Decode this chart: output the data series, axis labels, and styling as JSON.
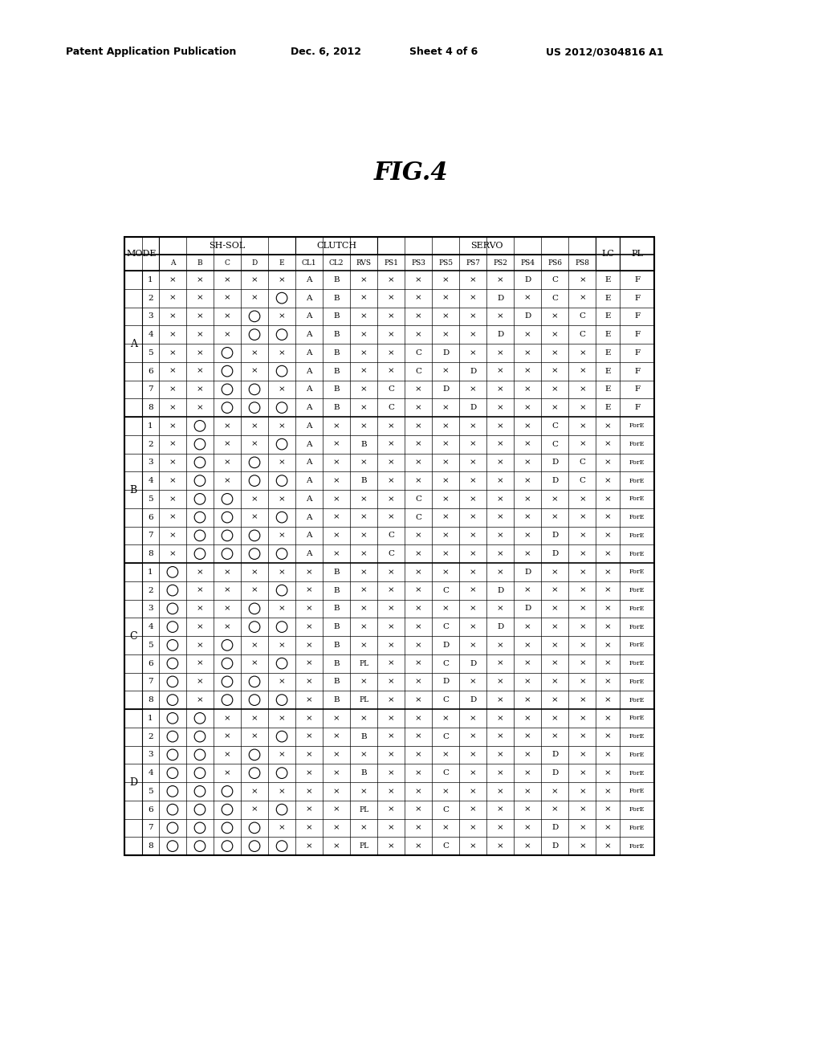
{
  "title": "FIG.4",
  "header_line1": "Patent Application Publication",
  "header_date": "Dec. 6, 2012",
  "header_sheet": "Sheet 4 of 6",
  "header_patent": "US 2012/0304816 A1",
  "rows": [
    [
      "A",
      1,
      "x",
      "x",
      "x",
      "x",
      "x",
      "A",
      "B",
      "x",
      "x",
      "x",
      "x",
      "x",
      "x",
      "D",
      "C",
      "x",
      "E",
      "F"
    ],
    [
      "A",
      2,
      "x",
      "x",
      "x",
      "x",
      "O",
      "A",
      "B",
      "x",
      "x",
      "x",
      "x",
      "x",
      "D",
      "x",
      "C",
      "x",
      "E",
      "F"
    ],
    [
      "A",
      3,
      "x",
      "x",
      "x",
      "O",
      "x",
      "A",
      "B",
      "x",
      "x",
      "x",
      "x",
      "x",
      "x",
      "D",
      "x",
      "C",
      "E",
      "F"
    ],
    [
      "A",
      4,
      "x",
      "x",
      "x",
      "O",
      "O",
      "A",
      "B",
      "x",
      "x",
      "x",
      "x",
      "x",
      "D",
      "x",
      "x",
      "C",
      "E",
      "F"
    ],
    [
      "A",
      5,
      "x",
      "x",
      "O",
      "x",
      "x",
      "A",
      "B",
      "x",
      "x",
      "C",
      "D",
      "x",
      "x",
      "x",
      "x",
      "x",
      "E",
      "F"
    ],
    [
      "A",
      6,
      "x",
      "x",
      "O",
      "x",
      "O",
      "A",
      "B",
      "x",
      "x",
      "C",
      "x",
      "D",
      "x",
      "x",
      "x",
      "x",
      "E",
      "F"
    ],
    [
      "A",
      7,
      "x",
      "x",
      "O",
      "O",
      "x",
      "A",
      "B",
      "x",
      "C",
      "x",
      "D",
      "x",
      "x",
      "x",
      "x",
      "x",
      "E",
      "F"
    ],
    [
      "A",
      8,
      "x",
      "x",
      "O",
      "O",
      "O",
      "A",
      "B",
      "x",
      "C",
      "x",
      "x",
      "D",
      "x",
      "x",
      "x",
      "x",
      "E",
      "F"
    ],
    [
      "B",
      1,
      "x",
      "O",
      "x",
      "x",
      "x",
      "A",
      "x",
      "x",
      "x",
      "x",
      "x",
      "x",
      "x",
      "x",
      "C",
      "x",
      "x",
      "ForE"
    ],
    [
      "B",
      2,
      "x",
      "O",
      "x",
      "x",
      "O",
      "A",
      "x",
      "B",
      "x",
      "x",
      "x",
      "x",
      "x",
      "x",
      "C",
      "x",
      "x",
      "ForE"
    ],
    [
      "B",
      3,
      "x",
      "O",
      "x",
      "O",
      "x",
      "A",
      "x",
      "x",
      "x",
      "x",
      "x",
      "x",
      "x",
      "x",
      "D",
      "C",
      "x",
      "ForE"
    ],
    [
      "B",
      4,
      "x",
      "O",
      "x",
      "O",
      "O",
      "A",
      "x",
      "B",
      "x",
      "x",
      "x",
      "x",
      "x",
      "x",
      "D",
      "C",
      "x",
      "ForE"
    ],
    [
      "B",
      5,
      "x",
      "O",
      "O",
      "x",
      "x",
      "A",
      "x",
      "x",
      "x",
      "C",
      "x",
      "x",
      "x",
      "x",
      "x",
      "x",
      "x",
      "ForE"
    ],
    [
      "B",
      6,
      "x",
      "O",
      "O",
      "x",
      "O",
      "A",
      "x",
      "x",
      "x",
      "C",
      "x",
      "x",
      "x",
      "x",
      "x",
      "x",
      "x",
      "ForE"
    ],
    [
      "B",
      7,
      "x",
      "O",
      "O",
      "O",
      "x",
      "A",
      "x",
      "x",
      "C",
      "x",
      "x",
      "x",
      "x",
      "x",
      "D",
      "x",
      "x",
      "ForE"
    ],
    [
      "B",
      8,
      "x",
      "O",
      "O",
      "O",
      "O",
      "A",
      "x",
      "x",
      "C",
      "x",
      "x",
      "x",
      "x",
      "x",
      "D",
      "x",
      "x",
      "ForE"
    ],
    [
      "C",
      1,
      "O",
      "x",
      "x",
      "x",
      "x",
      "x",
      "B",
      "x",
      "x",
      "x",
      "x",
      "x",
      "x",
      "D",
      "x",
      "x",
      "x",
      "ForE"
    ],
    [
      "C",
      2,
      "O",
      "x",
      "x",
      "x",
      "O",
      "x",
      "B",
      "x",
      "x",
      "x",
      "C",
      "x",
      "D",
      "x",
      "x",
      "x",
      "x",
      "ForE"
    ],
    [
      "C",
      3,
      "O",
      "x",
      "x",
      "O",
      "x",
      "x",
      "B",
      "x",
      "x",
      "x",
      "x",
      "x",
      "x",
      "D",
      "x",
      "x",
      "x",
      "ForE"
    ],
    [
      "C",
      4,
      "O",
      "x",
      "x",
      "O",
      "O",
      "x",
      "B",
      "x",
      "x",
      "x",
      "C",
      "x",
      "D",
      "x",
      "x",
      "x",
      "x",
      "ForE"
    ],
    [
      "C",
      5,
      "O",
      "x",
      "O",
      "x",
      "x",
      "x",
      "B",
      "x",
      "x",
      "x",
      "D",
      "x",
      "x",
      "x",
      "x",
      "x",
      "x",
      "ForE"
    ],
    [
      "C",
      6,
      "O",
      "x",
      "O",
      "x",
      "O",
      "x",
      "B",
      "PL",
      "x",
      "x",
      "C",
      "D",
      "x",
      "x",
      "x",
      "x",
      "x",
      "ForE"
    ],
    [
      "C",
      7,
      "O",
      "x",
      "O",
      "O",
      "x",
      "x",
      "B",
      "x",
      "x",
      "x",
      "D",
      "x",
      "x",
      "x",
      "x",
      "x",
      "x",
      "ForE"
    ],
    [
      "C",
      8,
      "O",
      "x",
      "O",
      "O",
      "O",
      "x",
      "B",
      "PL",
      "x",
      "x",
      "C",
      "D",
      "x",
      "x",
      "x",
      "x",
      "x",
      "ForE"
    ],
    [
      "D",
      1,
      "O",
      "O",
      "x",
      "x",
      "x",
      "x",
      "x",
      "x",
      "x",
      "x",
      "x",
      "x",
      "x",
      "x",
      "x",
      "x",
      "x",
      "ForE"
    ],
    [
      "D",
      2,
      "O",
      "O",
      "x",
      "x",
      "O",
      "x",
      "x",
      "B",
      "x",
      "x",
      "C",
      "x",
      "x",
      "x",
      "x",
      "x",
      "x",
      "ForE"
    ],
    [
      "D",
      3,
      "O",
      "O",
      "x",
      "O",
      "x",
      "x",
      "x",
      "x",
      "x",
      "x",
      "x",
      "x",
      "x",
      "x",
      "D",
      "x",
      "x",
      "ForE"
    ],
    [
      "D",
      4,
      "O",
      "O",
      "x",
      "O",
      "O",
      "x",
      "x",
      "B",
      "x",
      "x",
      "C",
      "x",
      "x",
      "x",
      "D",
      "x",
      "x",
      "ForE"
    ],
    [
      "D",
      5,
      "O",
      "O",
      "O",
      "x",
      "x",
      "x",
      "x",
      "x",
      "x",
      "x",
      "x",
      "x",
      "x",
      "x",
      "x",
      "x",
      "x",
      "ForE"
    ],
    [
      "D",
      6,
      "O",
      "O",
      "O",
      "x",
      "O",
      "x",
      "x",
      "PL",
      "x",
      "x",
      "C",
      "x",
      "x",
      "x",
      "x",
      "x",
      "x",
      "ForE"
    ],
    [
      "D",
      7,
      "O",
      "O",
      "O",
      "O",
      "x",
      "x",
      "x",
      "x",
      "x",
      "x",
      "x",
      "x",
      "x",
      "x",
      "D",
      "x",
      "x",
      "ForE"
    ],
    [
      "D",
      8,
      "O",
      "O",
      "O",
      "O",
      "O",
      "x",
      "x",
      "PL",
      "x",
      "x",
      "C",
      "x",
      "x",
      "x",
      "D",
      "x",
      "x",
      "ForE"
    ]
  ]
}
